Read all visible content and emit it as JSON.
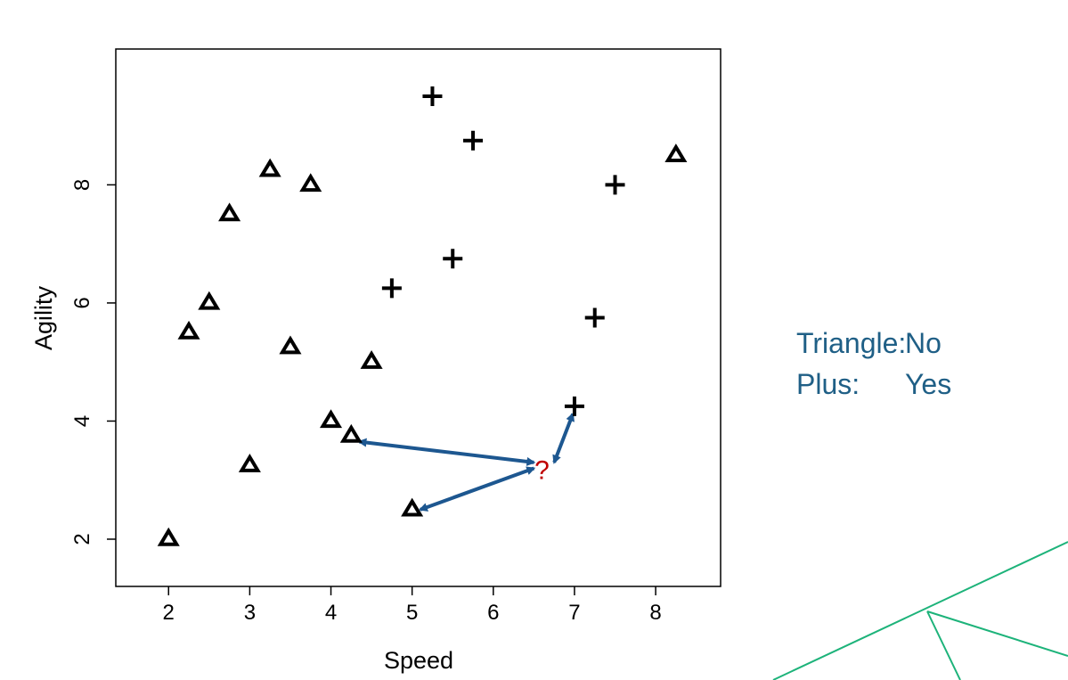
{
  "colors": {
    "accent": "#1f5f86",
    "arrow": "#1d5790",
    "query": "#c00000",
    "deco": "#1db37a",
    "title": "#1a5e82"
  },
  "legend": {
    "triangle_label": "Triangle:",
    "triangle_value": "No",
    "plus_label": "Plus:",
    "plus_value": "Yes"
  },
  "chart_data": {
    "type": "scatter",
    "xlabel": "Speed",
    "ylabel": "Agility",
    "xlim": [
      1.35,
      8.8
    ],
    "ylim": [
      1.2,
      10.3
    ],
    "xticks": [
      2,
      3,
      4,
      5,
      6,
      7,
      8
    ],
    "yticks": [
      2,
      4,
      6,
      8
    ],
    "grid": false,
    "series": [
      {
        "marker": "triangle",
        "points": [
          [
            2,
            2
          ],
          [
            2.25,
            5.5
          ],
          [
            2.5,
            6
          ],
          [
            2.75,
            7.5
          ],
          [
            3,
            3.25
          ],
          [
            3.25,
            8.25
          ],
          [
            3.5,
            5.25
          ],
          [
            3.75,
            8
          ],
          [
            4,
            4
          ],
          [
            4.25,
            3.75
          ],
          [
            4.5,
            5
          ],
          [
            5,
            2.5
          ],
          [
            8.25,
            8.5
          ]
        ]
      },
      {
        "marker": "plus",
        "points": [
          [
            4.75,
            6.25
          ],
          [
            5.25,
            9.5
          ],
          [
            5.5,
            6.75
          ],
          [
            5.75,
            8.75
          ],
          [
            7,
            4.25
          ],
          [
            7.25,
            5.75
          ],
          [
            7.5,
            8
          ]
        ]
      }
    ],
    "query_point": {
      "x": 6.6,
      "y": 3.2,
      "label": "?"
    },
    "neighbor_arrows": [
      {
        "from": [
          6.5,
          3.3
        ],
        "to": [
          4.35,
          3.65
        ]
      },
      {
        "from": [
          6.5,
          3.2
        ],
        "to": [
          5.1,
          2.5
        ]
      },
      {
        "from": [
          6.75,
          3.3
        ],
        "to": [
          6.98,
          4.12
        ]
      }
    ]
  }
}
